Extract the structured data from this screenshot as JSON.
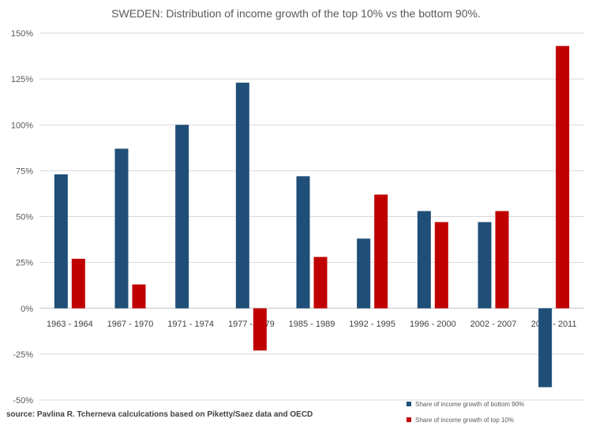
{
  "chart_data": {
    "type": "bar",
    "title": "SWEDEN: Distribution of income growth of the top 10% vs the bottom 90%.",
    "xlabel": "",
    "ylabel": "",
    "ylim": [
      -50,
      150
    ],
    "yticks": [
      150,
      125,
      100,
      75,
      50,
      25,
      0,
      -25,
      -50
    ],
    "ytick_labels": [
      "150%",
      "125%",
      "100%",
      "75%",
      "50%",
      "25%",
      "0%",
      "-25%",
      "-50%"
    ],
    "grid": true,
    "legend_position": "bottom-right",
    "categories": [
      "1963 - 1964",
      "1967 - 1970",
      "1971 - 1974",
      "1977 - 1979",
      "1985 - 1989",
      "1992 - 1995",
      "1996 - 2000",
      "2002 - 2007",
      "2009 - 2011"
    ],
    "series": [
      {
        "name": "Share of income growth of bottom 90%",
        "color": "#1f4e79",
        "values": [
          73,
          87,
          100,
          123,
          72,
          38,
          53,
          47,
          -43
        ]
      },
      {
        "name": "Share of income growth of top 10%",
        "color": "#c00000",
        "values": [
          27,
          13,
          0,
          -23,
          28,
          62,
          47,
          53,
          143
        ]
      }
    ],
    "source": "source: Pavlina R. Tcherneva calculcations based on Piketty/Saez data and OECD"
  }
}
